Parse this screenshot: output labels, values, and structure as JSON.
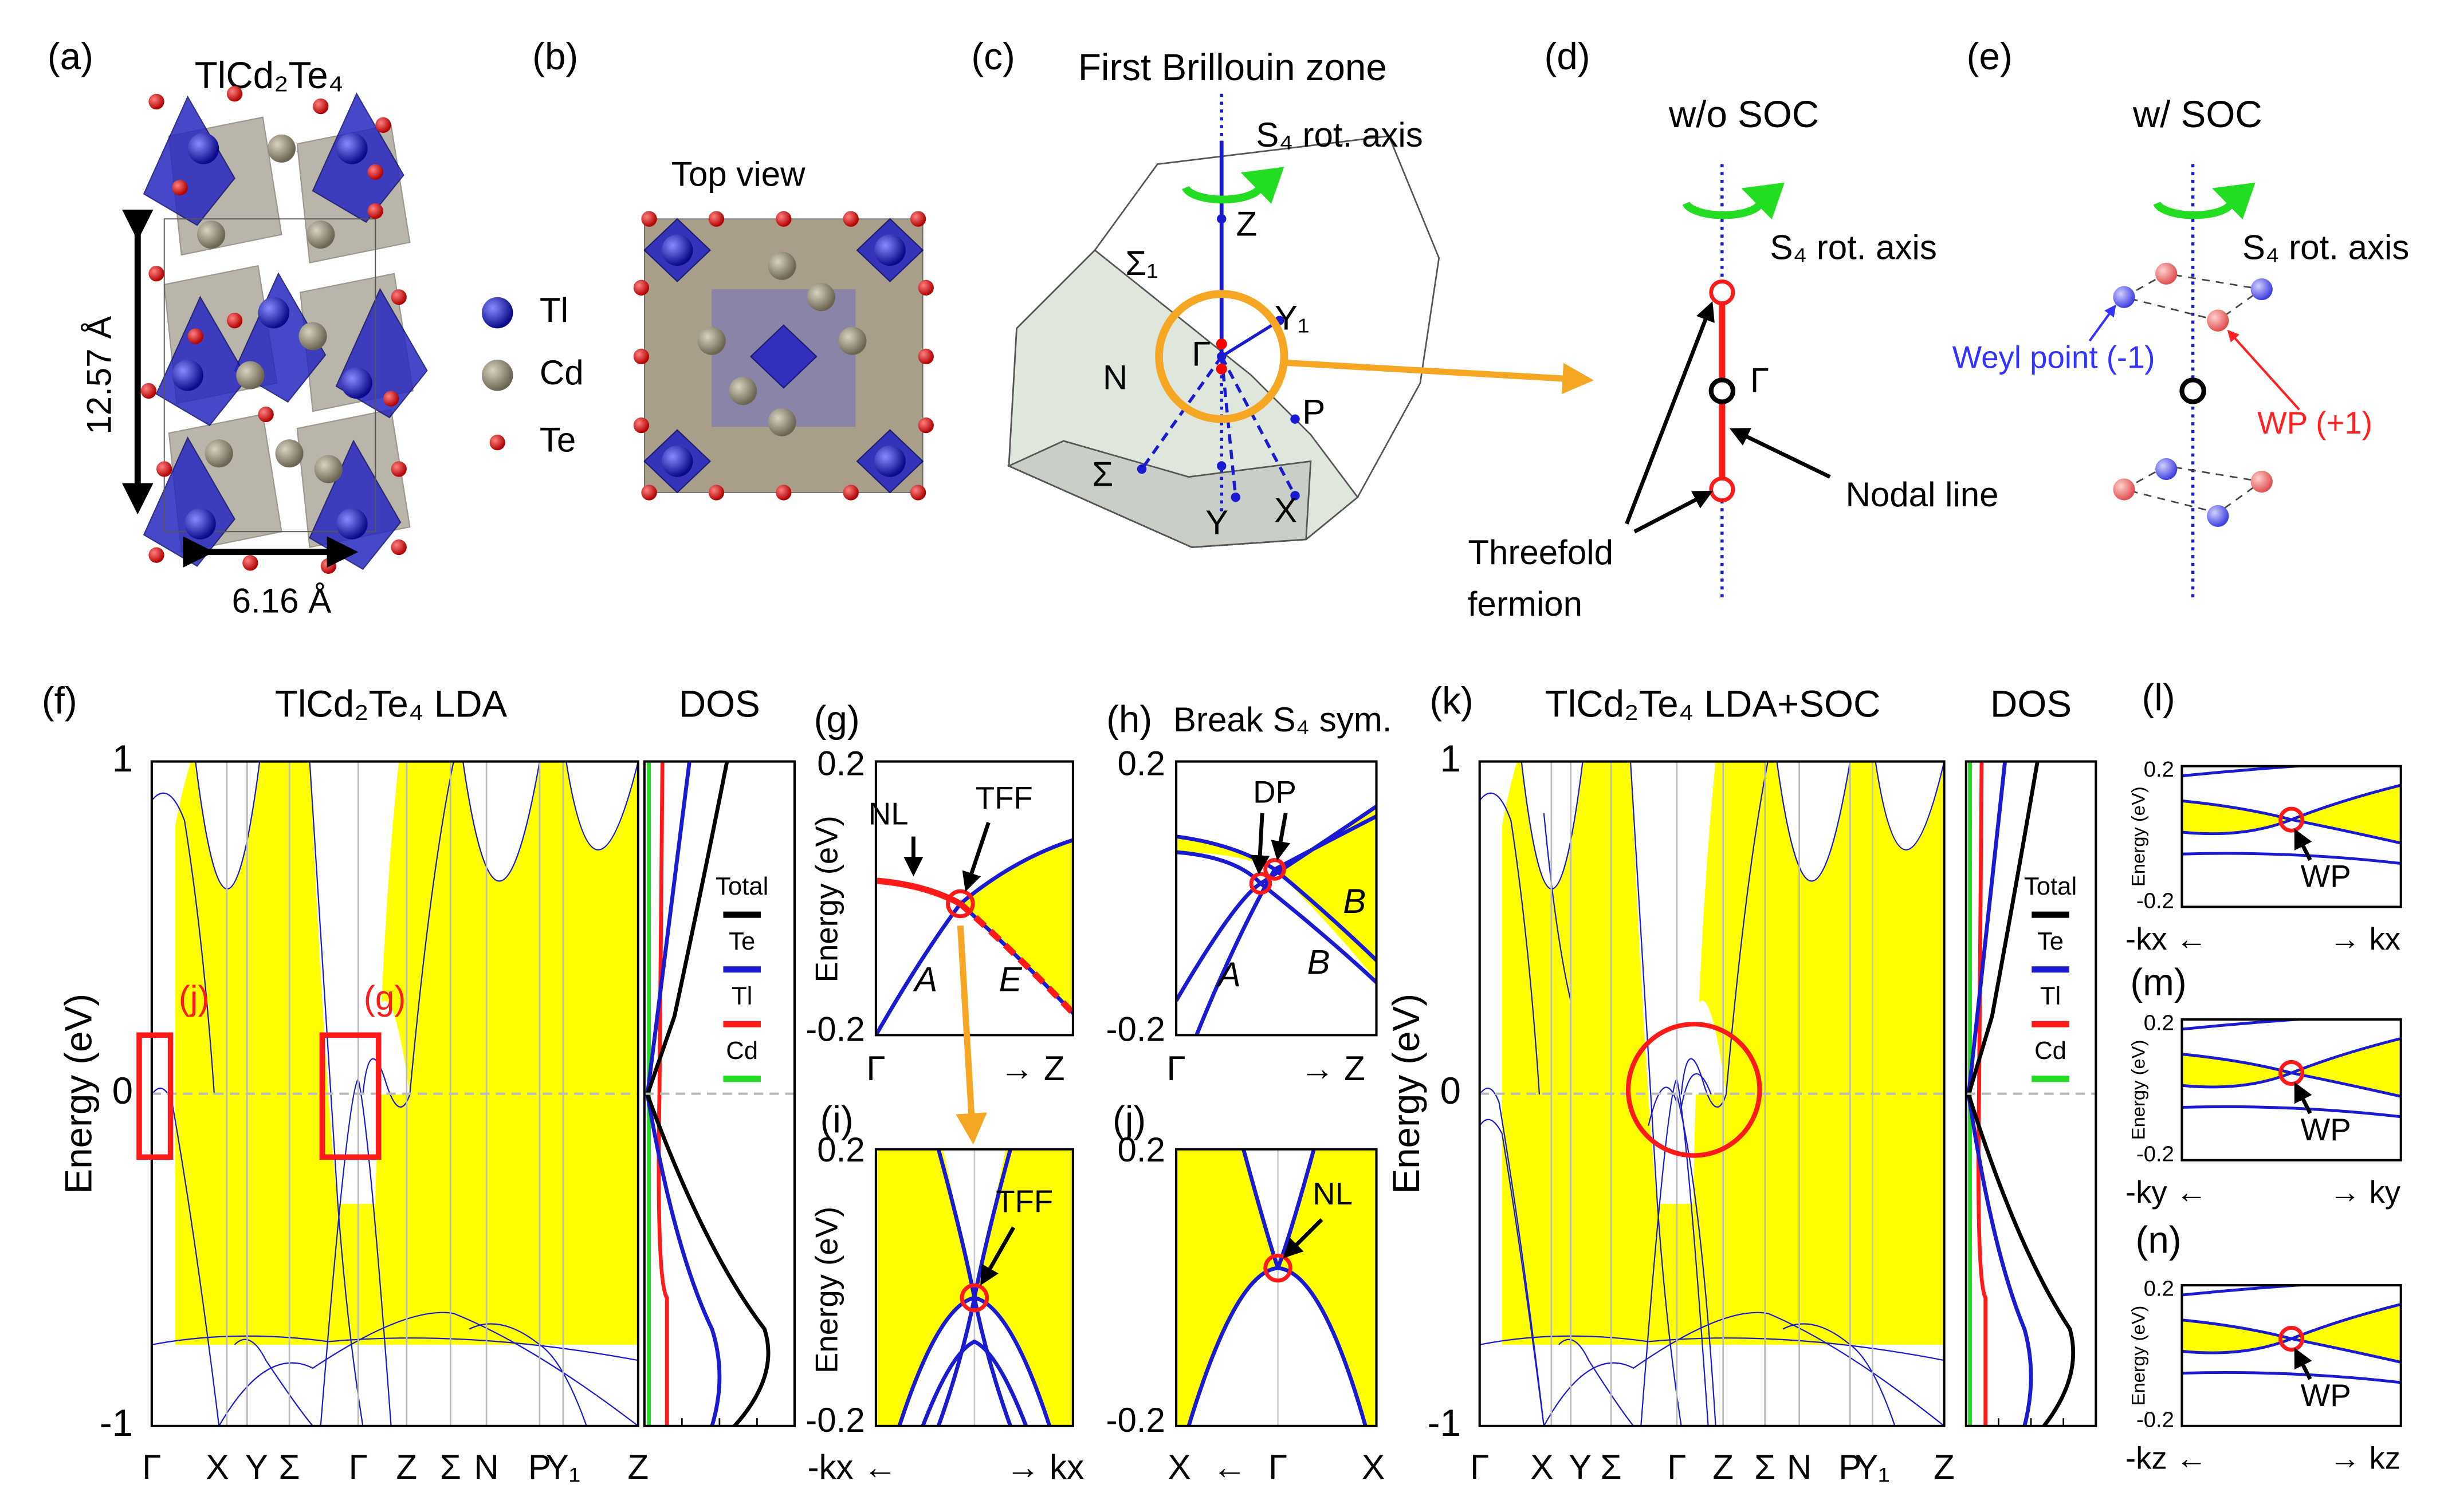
{
  "panels": {
    "a": {
      "label": "(a)",
      "title": "TlCd₂Te₄",
      "height": "12.57 Å",
      "width": "6.16 Å"
    },
    "b": {
      "label": "(b)",
      "title": "Top view",
      "legend": [
        "Tl",
        "Cd",
        "Te"
      ]
    },
    "c": {
      "label": "(c)",
      "title": "First Brillouin zone",
      "axis": "S₄ rot. axis",
      "points": [
        "Z",
        "Σ₁",
        "Y₁",
        "N",
        "Γ",
        "P",
        "Σ",
        "Y",
        "X"
      ]
    },
    "d": {
      "label": "(d)",
      "title": "w/o SOC",
      "axis": "S₄ rot. axis",
      "gamma": "Γ",
      "nodal": "Nodal line",
      "fermion": [
        "Threefold",
        "fermion"
      ]
    },
    "e": {
      "label": "(e)",
      "title": "w/ SOC",
      "axis": "S₄ rot. axis",
      "weyl_minus": "Weyl point (-1)",
      "weyl_plus": "WP (+1)"
    },
    "f": {
      "label": "(f)",
      "title": "TlCd₂Te₄ LDA",
      "dos": "DOS",
      "ylabel": "Energy (eV)",
      "yticks": [
        1,
        0,
        -1
      ],
      "xticks": [
        "Γ",
        "X",
        "Y",
        "Σ",
        "Γ",
        "Z",
        "Σ",
        "N",
        "P",
        "Y₁",
        "Z"
      ],
      "boxes": [
        "(j)",
        "(g)"
      ],
      "legend": [
        "Total",
        "Te",
        "Tl",
        "Cd"
      ]
    },
    "g": {
      "label": "(g)",
      "ylabel": "Energy (eV)",
      "yticks": [
        0.2,
        -0.2
      ],
      "xticks": [
        "Γ",
        "→ Z"
      ],
      "notes": [
        "NL",
        "TFF",
        "A",
        "E"
      ]
    },
    "h": {
      "label": "(h)",
      "title": "Break S₄ sym.",
      "yticks": [
        0.2,
        -0.2
      ],
      "xticks": [
        "Γ",
        "→ Z"
      ],
      "notes": [
        "DP",
        "A",
        "B",
        "B"
      ]
    },
    "i": {
      "label": "(i)",
      "ylabel": "Energy (eV)",
      "yticks": [
        0.2,
        -0.2
      ],
      "xticks": [
        "-kx ←",
        "→ kx"
      ],
      "notes": [
        "TFF"
      ]
    },
    "j": {
      "label": "(j)",
      "yticks": [
        0.2,
        -0.2
      ],
      "xticks": [
        "X",
        "←",
        "Γ",
        "X"
      ],
      "notes": [
        "NL"
      ]
    },
    "k": {
      "label": "(k)",
      "title": "TlCd₂Te₄ LDA+SOC",
      "dos": "DOS",
      "ylabel": "Energy (eV)",
      "yticks": [
        1,
        0,
        -1
      ],
      "xticks": [
        "Γ",
        "X",
        "Y",
        "Σ",
        "Γ",
        "Z",
        "Σ",
        "N",
        "P",
        "Y₁",
        "Z"
      ],
      "legend": [
        "Total",
        "Te",
        "Tl",
        "Cd"
      ]
    },
    "l": {
      "label": "(l)",
      "ylabel": "Energy (eV)",
      "yticks": [
        0.2,
        -0.2
      ],
      "xticks": [
        "-kx ←",
        "→ kx"
      ],
      "note": "WP"
    },
    "m": {
      "label": "(m)",
      "ylabel": "Energy (eV)",
      "yticks": [
        0.2,
        -0.2
      ],
      "xticks": [
        "-ky ←",
        "→ ky"
      ],
      "note": "WP"
    },
    "n": {
      "label": "(n)",
      "ylabel": "Energy (eV)",
      "yticks": [
        0.2,
        -0.2
      ],
      "xticks": [
        "-kz ←",
        "→ kz"
      ],
      "note": "WP"
    }
  }
}
